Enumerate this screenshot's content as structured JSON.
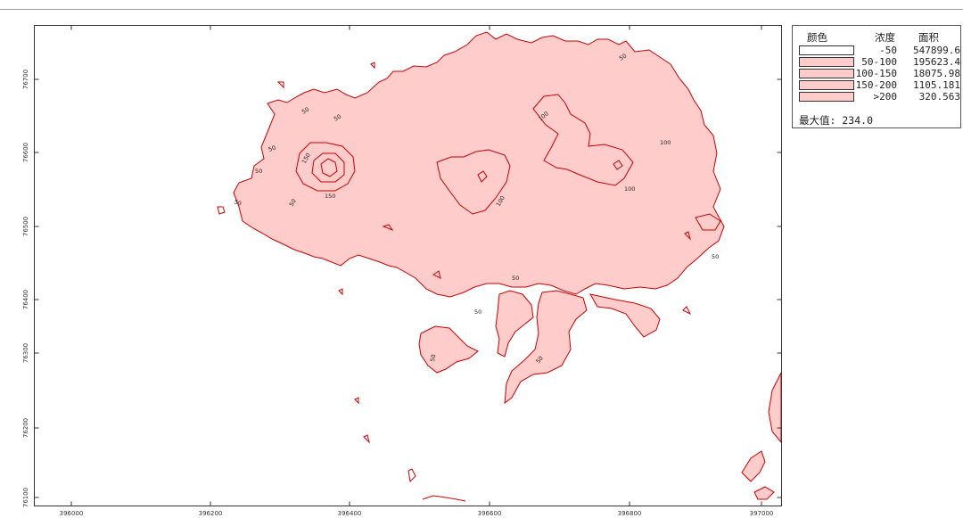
{
  "map": {
    "x_ticks": [
      "396000",
      "396200",
      "396400",
      "396600",
      "396800",
      "397000"
    ],
    "y_ticks": [
      "76700",
      "76600",
      "76500",
      "76400",
      "76300",
      "76200",
      "76100"
    ],
    "fill_color": "#ffcccc",
    "line_color": "#cc0000",
    "contour_labels": [
      "50",
      "50",
      "50",
      "50",
      "50",
      "50",
      "50",
      "50",
      "50",
      "50",
      "100",
      "100",
      "100",
      "100",
      "150",
      "150",
      "50",
      "50"
    ]
  },
  "legend": {
    "col_color": "颜色",
    "col_conc": "浓度",
    "col_area": "面积",
    "rows": [
      {
        "conc": "-50",
        "area": "547899.6",
        "color": "#ffffff"
      },
      {
        "conc": "50-100",
        "area": "195623.4",
        "color": "#ffcccc"
      },
      {
        "conc": "100-150",
        "area": "18075.98",
        "color": "#ffcccc"
      },
      {
        "conc": "150-200",
        "area": "1105.181",
        "color": "#ffcccc"
      },
      {
        "conc": ">200",
        "area": "320.563",
        "color": "#ffcccc"
      }
    ],
    "max_label": "最大值:",
    "max_value": "234.0"
  }
}
